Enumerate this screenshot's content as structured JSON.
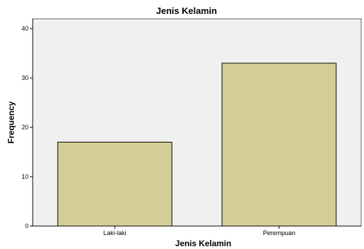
{
  "chart_data": {
    "type": "bar",
    "title": "Jenis Kelamin",
    "xlabel": "Jenis Kelamin",
    "ylabel": "Frequency",
    "categories": [
      "Laki-laki",
      "Perempuan"
    ],
    "values": [
      17,
      33
    ],
    "ylim": [
      0,
      42
    ],
    "yticks": [
      0,
      10,
      20,
      30,
      40
    ],
    "grid": false,
    "legend": "none",
    "colors": {
      "bar_fill": "#d3ce98",
      "bar_stroke": "#000000",
      "plot_background": "#f0f0f0",
      "axis": "#000000"
    }
  }
}
